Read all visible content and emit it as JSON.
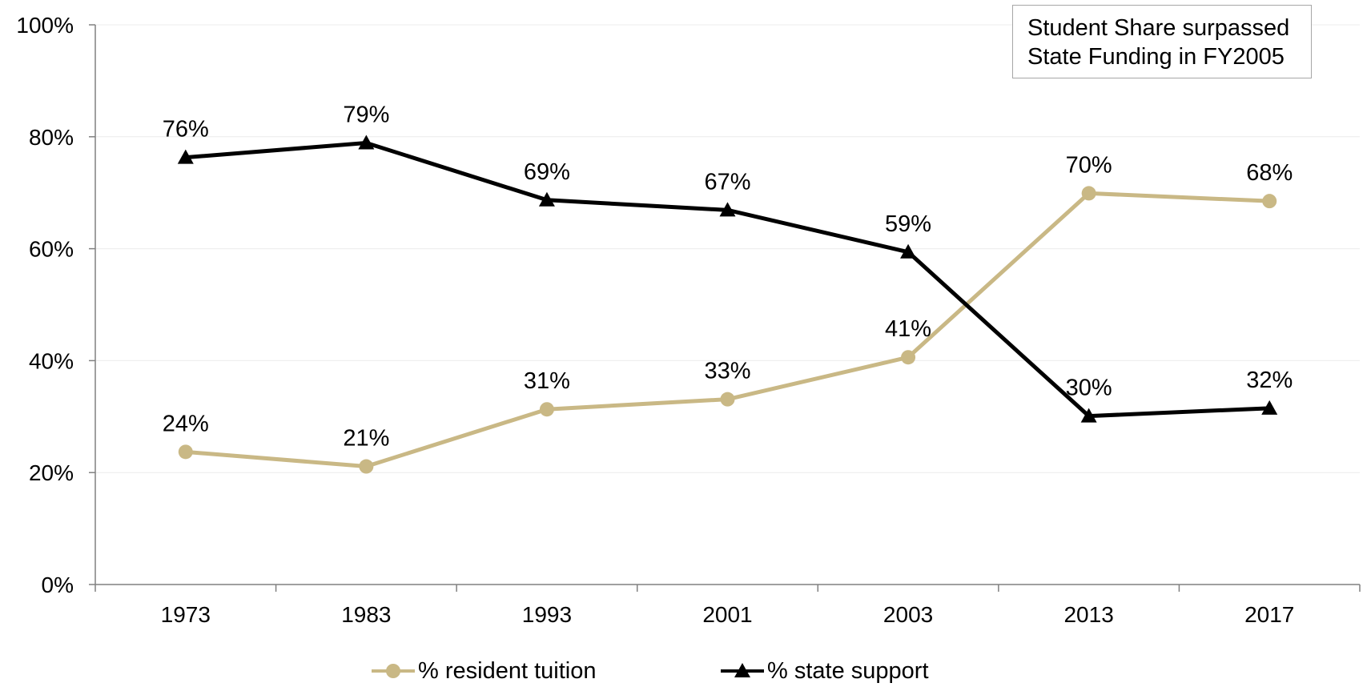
{
  "chart_data": {
    "type": "line",
    "categories": [
      "1973",
      "1983",
      "1993",
      "2001",
      "2003",
      "2013",
      "2017"
    ],
    "ylim": [
      0,
      100
    ],
    "yticks": [
      0,
      20,
      40,
      60,
      80,
      100
    ],
    "ytick_labels": [
      "0%",
      "20%",
      "40%",
      "60%",
      "80%",
      "100%"
    ],
    "grid": true,
    "legend_position": "bottom",
    "series": [
      {
        "name": "% resident tuition",
        "color": "#c9b885",
        "marker": "circle",
        "values": [
          23.7,
          21.1,
          31.3,
          33.1,
          40.6,
          69.9,
          68.5
        ],
        "labels": [
          "24%",
          "21%",
          "31%",
          "33%",
          "41%",
          "70%",
          "68%"
        ]
      },
      {
        "name": "% state support",
        "color": "#000000",
        "marker": "triangle",
        "values": [
          76.3,
          78.9,
          68.7,
          66.9,
          59.4,
          30.1,
          31.5
        ],
        "labels": [
          "76%",
          "79%",
          "69%",
          "67%",
          "59%",
          "30%",
          "32%"
        ]
      }
    ],
    "annotation": {
      "line1": "Student Share surpassed",
      "line2": "State Funding in FY2005"
    }
  }
}
